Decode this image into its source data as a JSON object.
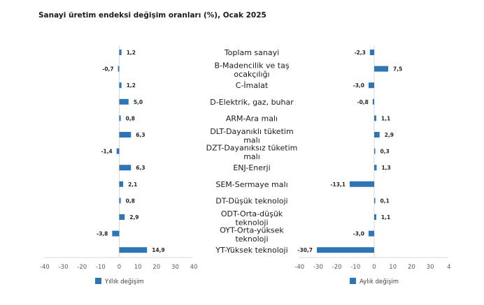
{
  "chart_data": {
    "type": "bar",
    "orientation": "horizontal",
    "title": "Sanayi üretim endeksi değişim oranları (%), Ocak 2025",
    "categories": [
      [
        "Toplam sanayi"
      ],
      [
        "B-Madencilik ve taş",
        "ocakçılığı"
      ],
      [
        "C-İmalat"
      ],
      [
        "D-Elektrik, gaz, buhar"
      ],
      [
        "ARM-Ara malı"
      ],
      [
        "DLT-Dayanıklı tüketim",
        "malı"
      ],
      [
        "DZT-Dayanıksız tüketim",
        "malı"
      ],
      [
        "ENJ-Enerji"
      ],
      [
        "SEM-Sermaye malı"
      ],
      [
        "DT-Düşük teknoloji"
      ],
      [
        "ODT-Orta-düşük",
        "teknoloji"
      ],
      [
        "OYT-Orta-yüksek",
        "teknoloji"
      ],
      [
        "YT-Yüksek teknoloji"
      ]
    ],
    "series": [
      {
        "name": "Yıllık değişim",
        "values": [
          1.2,
          -0.7,
          1.2,
          5.0,
          0.8,
          6.3,
          -1.4,
          6.3,
          2.1,
          0.8,
          2.9,
          -3.8,
          14.9
        ],
        "labels": [
          "1,2",
          "-0,7",
          "1,2",
          "5,0",
          "0,8",
          "6,3",
          "-1,4",
          "6,3",
          "2,1",
          "0,8",
          "2,9",
          "-3,8",
          "14,9"
        ],
        "xlim": [
          -40,
          40
        ],
        "ticks": [
          "-40",
          "-30",
          "-20",
          "-10",
          "0",
          "10",
          "20",
          "30",
          "40"
        ],
        "color": "#2e75b6"
      },
      {
        "name": "Aylık değişim",
        "values": [
          -2.3,
          7.5,
          -3.0,
          -0.8,
          1.1,
          2.9,
          0.3,
          1.3,
          -13.1,
          0.1,
          1.1,
          -3.0,
          -30.7
        ],
        "labels": [
          "-2,3",
          "7,5",
          "-3,0",
          "-0,8",
          "1,1",
          "2,9",
          "0,3",
          "1,3",
          "-13,1",
          "0,1",
          "1,1",
          "-3,0",
          "-30,7"
        ],
        "xlim": [
          -40,
          40
        ],
        "ticks": [
          "-40",
          "-30",
          "-20",
          "-10",
          "0",
          "10",
          "20",
          "30",
          "4"
        ],
        "color": "#2e75b6"
      }
    ],
    "grid": false,
    "legend_position": "bottom"
  }
}
